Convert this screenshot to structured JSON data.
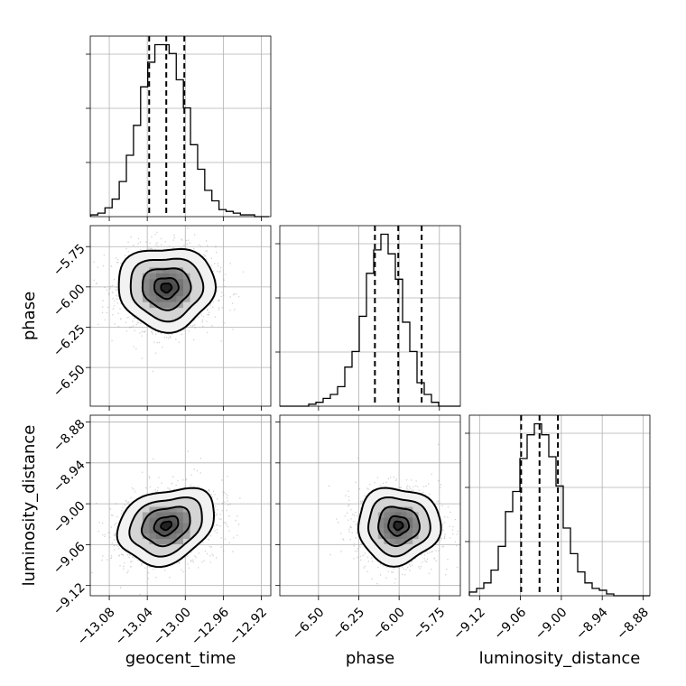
{
  "chart_data": {
    "type": "corner",
    "parameters": [
      "geocent_time",
      "phase",
      "luminosity_distance"
    ],
    "ranges": {
      "geocent_time": [
        -13.1,
        -12.91
      ],
      "phase": [
        -6.74,
        -5.62
      ],
      "luminosity_distance": [
        -9.135,
        -8.87
      ]
    },
    "ticks": {
      "geocent_time": {
        "values": [
          -13.08,
          -13.04,
          -13.0,
          -12.96,
          -12.92
        ],
        "labels": [
          "−13.08",
          "−13.04",
          "−13.00",
          "−12.96",
          "−12.92"
        ]
      },
      "phase": {
        "values": [
          -6.5,
          -6.25,
          -6.0,
          -5.75
        ],
        "labels": [
          "−6.50",
          "−6.25",
          "−6.00",
          "−5.75"
        ]
      },
      "luminosity_distance": {
        "values": [
          -9.12,
          -9.06,
          -9.0,
          -8.94,
          -8.88
        ],
        "labels": [
          "−9.12",
          "−9.06",
          "−9.00",
          "−8.94",
          "−8.88"
        ]
      }
    },
    "quantiles": {
      "geocent_time": [
        -13.038,
        -13.02,
        -13.001
      ],
      "phase": [
        -6.15,
        -6.005,
        -5.86
      ],
      "luminosity_distance": [
        -9.059,
        -9.032,
        -9.005
      ]
    },
    "histograms": {
      "geocent_time": {
        "start": -13.0995,
        "width": 0.0075,
        "counts": [
          1,
          2,
          5,
          10,
          20,
          35,
          52,
          74,
          88,
          98,
          98,
          93,
          78,
          62,
          41,
          27,
          15,
          9,
          4,
          3,
          2,
          1,
          1,
          0,
          0
        ]
      },
      "phase": {
        "start": -6.74,
        "width": 0.0448,
        "counts": [
          0,
          0,
          0,
          0,
          1,
          2,
          4,
          6,
          10,
          20,
          28,
          46,
          68,
          80,
          88,
          78,
          65,
          43,
          28,
          12,
          6,
          2,
          0,
          0,
          0
        ]
      },
      "luminosity_distance": {
        "start": -9.135,
        "width": 0.0106,
        "counts": [
          2,
          4,
          7,
          14,
          27,
          46,
          57,
          75,
          88,
          94,
          88,
          76,
          60,
          37,
          23,
          13,
          7,
          4,
          3,
          1,
          0,
          0,
          0,
          0,
          0
        ]
      }
    },
    "densities": [
      {
        "x": "geocent_time",
        "y": "phase",
        "center": [
          -13.02,
          -6.005
        ],
        "sigma": [
          0.0255,
          0.128
        ],
        "rho": 0.0
      },
      {
        "x": "geocent_time",
        "y": "luminosity_distance",
        "center": [
          -13.02,
          -9.032
        ],
        "sigma": [
          0.0255,
          0.028
        ],
        "rho": 0.25
      },
      {
        "x": "phase",
        "y": "luminosity_distance",
        "center": [
          -6.005,
          -9.032
        ],
        "sigma": [
          0.128,
          0.028
        ],
        "rho": 0.0
      }
    ],
    "levels_sigma": [
      0.5,
      1.0,
      1.5,
      2.0
    ],
    "grid": true
  }
}
